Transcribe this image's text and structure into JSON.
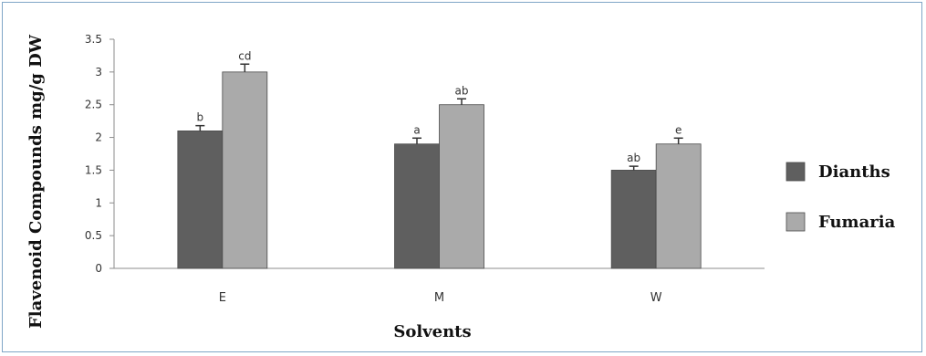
{
  "chart_data": {
    "type": "bar",
    "categories": [
      "E",
      "M",
      "W"
    ],
    "series": [
      {
        "name": "Dianths",
        "color": "#5f5f5f",
        "values": [
          2.1,
          1.9,
          1.5
        ],
        "errors": [
          0.08,
          0.09,
          0.06
        ],
        "labels": [
          "b",
          "a",
          "ab"
        ]
      },
      {
        "name": "Fumaria",
        "color": "#aaaaaa",
        "values": [
          3.0,
          2.5,
          1.9
        ],
        "errors": [
          0.12,
          0.09,
          0.09
        ],
        "labels": [
          "cd",
          "ab",
          "e"
        ]
      }
    ],
    "xlabel": "Solvents",
    "ylabel": "Flavenoid Compounds mg/g DW",
    "ylim": [
      0,
      3.5
    ],
    "yticks": [
      "0",
      "0.5",
      "1",
      "1.5",
      "2",
      "2.5",
      "3",
      "3.5"
    ],
    "grid": false,
    "legend_position": "right"
  }
}
